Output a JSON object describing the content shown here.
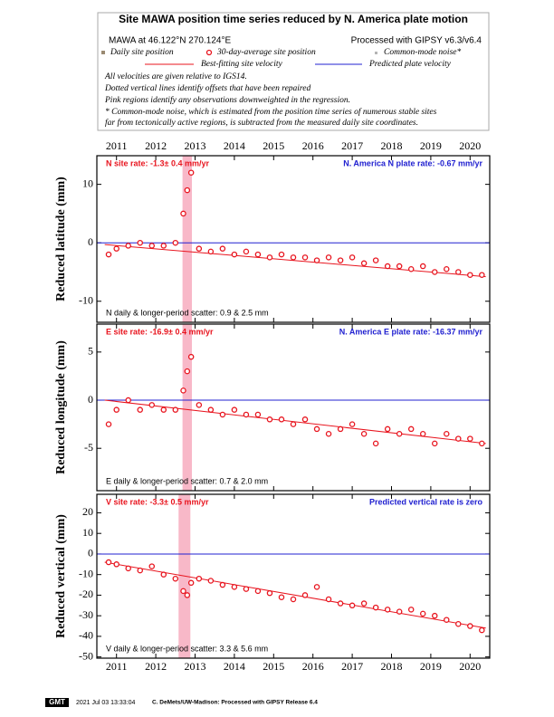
{
  "header": {
    "title": "Site MAWA position time series reduced by N. America plate motion",
    "location": "MAWA at 46.122°N 270.124°E",
    "processing": "Processed with GIPSY v6.3/v6.4",
    "legend": [
      {
        "name": "Daily site position",
        "color": "#9a8a72"
      },
      {
        "name": "30-day-average site position",
        "color": "#e8141e"
      },
      {
        "name": "Common-mode noise*",
        "color": "#b4b4b4"
      },
      {
        "name": "Best-fitting site velocity",
        "color": "#e8141e"
      },
      {
        "name": "Predicted plate velocity",
        "color": "#2020d0"
      }
    ],
    "notes": [
      "All velocities are given relative to IGS14.",
      "Dotted vertical lines identify offsets that have been repaired",
      "Pink regions identify any observations downweighted in the regression.",
      "* Common-mode noise, which is estimated from the position time series of numerous stable sites",
      "far from tectonically active regions, is subtracted from the measured daily site coordinates."
    ]
  },
  "chart_data": [
    {
      "type": "line",
      "ylabel": "Reduced latitude (mm)",
      "rate_label": "N site rate:  -1.3± 0.4 mm/yr",
      "plate_label": "N. America N plate rate: -0.67 mm/yr",
      "scatter_label": "N daily & longer-period scatter:   0.9 &   2.5 mm",
      "xlabels": "top",
      "xlim": [
        2010.5,
        2020.5
      ],
      "xticks": [
        2011,
        2012,
        2013,
        2014,
        2015,
        2016,
        2017,
        2018,
        2019,
        2020
      ],
      "ylim": [
        -13.6,
        14.9
      ],
      "yticks": [
        -10,
        0,
        10
      ],
      "downweighted": [
        2012.68,
        2012.92
      ],
      "series": [
        {
          "color": "#e8141e",
          "x": [
            2010.8,
            2011.0,
            2011.3,
            2011.6,
            2011.9,
            2012.2,
            2012.5,
            2012.7,
            2012.8,
            2012.9,
            2013.1,
            2013.4,
            2013.7,
            2014.0,
            2014.3,
            2014.6,
            2014.9,
            2015.2,
            2015.5,
            2015.8,
            2016.1,
            2016.4,
            2016.7,
            2017.0,
            2017.3,
            2017.6,
            2017.9,
            2018.2,
            2018.5,
            2018.8,
            2019.1,
            2019.4,
            2019.7,
            2020.0,
            2020.3
          ],
          "values": [
            -2,
            -1,
            -0.5,
            0,
            -0.5,
            -0.5,
            0,
            5,
            9,
            12,
            -1,
            -1.5,
            -1,
            -2,
            -1.5,
            -2,
            -2.5,
            -2,
            -2.5,
            -2.5,
            -3,
            -2.5,
            -3,
            -2.5,
            -3.5,
            -3,
            -4,
            -4,
            -4.5,
            -4,
            -5,
            -4.5,
            -5,
            -5.5,
            -5.5
          ]
        },
        {
          "color": "#e8141e",
          "x": [
            2010.7,
            2020.4
          ],
          "values": [
            -0.3,
            -5.8
          ]
        },
        {
          "color": "#2020d0",
          "x": [
            2010.5,
            2020.5
          ],
          "values": [
            0,
            0
          ]
        }
      ]
    },
    {
      "type": "line",
      "ylabel": "Reduced longitude (mm)",
      "rate_label": "E site rate:  -16.9± 0.4 mm/yr",
      "plate_label": "N. America E plate rate: -16.37 mm/yr",
      "scatter_label": "E daily & longer-period scatter:   0.7 &   2.0 mm",
      "xlabels": "none",
      "xlim": [
        2010.5,
        2020.5
      ],
      "xticks": [
        2011,
        2012,
        2013,
        2014,
        2015,
        2016,
        2017,
        2018,
        2019,
        2020
      ],
      "ylim": [
        -9.4,
        7.9
      ],
      "yticks": [
        -5,
        0,
        5
      ],
      "downweighted": [
        2012.68,
        2012.92
      ],
      "series": [
        {
          "color": "#e8141e",
          "x": [
            2010.8,
            2011.0,
            2011.3,
            2011.6,
            2011.9,
            2012.2,
            2012.5,
            2012.7,
            2012.8,
            2012.9,
            2013.1,
            2013.4,
            2013.7,
            2014.0,
            2014.3,
            2014.6,
            2014.9,
            2015.2,
            2015.5,
            2015.8,
            2016.1,
            2016.4,
            2016.7,
            2017.0,
            2017.3,
            2017.6,
            2017.9,
            2018.2,
            2018.5,
            2018.8,
            2019.1,
            2019.4,
            2019.7,
            2020.0,
            2020.3
          ],
          "values": [
            -2.5,
            -1,
            0,
            -1,
            -0.5,
            -1,
            -1,
            1,
            3,
            4.5,
            -0.5,
            -1,
            -1.5,
            -1,
            -1.5,
            -1.5,
            -2,
            -2,
            -2.5,
            -2,
            -3,
            -3.5,
            -3,
            -2.5,
            -3.5,
            -4.5,
            -3,
            -3.5,
            -3,
            -3.5,
            -4.5,
            -3.5,
            -4,
            -4,
            -4.5
          ]
        },
        {
          "color": "#e8141e",
          "x": [
            2010.7,
            2020.4
          ],
          "values": [
            0,
            -4.5
          ]
        },
        {
          "color": "#2020d0",
          "x": [
            2010.5,
            2020.5
          ],
          "values": [
            0,
            0
          ]
        }
      ]
    },
    {
      "type": "line",
      "ylabel": "Reduced vertical  (mm)",
      "rate_label": "V site rate:  -3.3± 0.5 mm/yr",
      "plate_label": "Predicted vertical rate is zero",
      "scatter_label": "V daily & longer-period scatter:   3.3 &   5.6 mm",
      "xlabels": "bottom",
      "xlim": [
        2010.5,
        2020.5
      ],
      "xticks": [
        2011,
        2012,
        2013,
        2014,
        2015,
        2016,
        2017,
        2018,
        2019,
        2020
      ],
      "ylim": [
        -50.6,
        29
      ],
      "yticks": [
        -50,
        -40,
        -30,
        -20,
        -10,
        0,
        10,
        20
      ],
      "downweighted": [
        2012.58,
        2012.88
      ],
      "series": [
        {
          "color": "#e8141e",
          "x": [
            2010.8,
            2011.0,
            2011.3,
            2011.6,
            2011.9,
            2012.2,
            2012.5,
            2012.7,
            2012.8,
            2012.9,
            2013.1,
            2013.4,
            2013.7,
            2014.0,
            2014.3,
            2014.6,
            2014.9,
            2015.2,
            2015.5,
            2015.8,
            2016.1,
            2016.4,
            2016.7,
            2017.0,
            2017.3,
            2017.6,
            2017.9,
            2018.2,
            2018.5,
            2018.8,
            2019.1,
            2019.4,
            2019.7,
            2020.0,
            2020.3
          ],
          "values": [
            -4,
            -5,
            -7,
            -8,
            -6,
            -10,
            -12,
            -18,
            -20,
            -14,
            -12,
            -13,
            -15,
            -16,
            -17,
            -18,
            -19,
            -21,
            -22,
            -20,
            -16,
            -22,
            -24,
            -25,
            -24,
            -26,
            -27,
            -28,
            -27,
            -29,
            -30,
            -32,
            -34,
            -35,
            -37
          ]
        },
        {
          "color": "#e8141e",
          "x": [
            2010.7,
            2020.4
          ],
          "values": [
            -4,
            -36
          ]
        },
        {
          "color": "#2020d0",
          "x": [
            2010.5,
            2020.5
          ],
          "values": [
            0,
            0
          ]
        }
      ]
    }
  ],
  "footer": {
    "logo": "GMT",
    "timestamp": "2021 Jul 03 13:33:04",
    "credit": "C. DeMets/UW-Madison: Processed with GIPSY Release 6.4"
  }
}
